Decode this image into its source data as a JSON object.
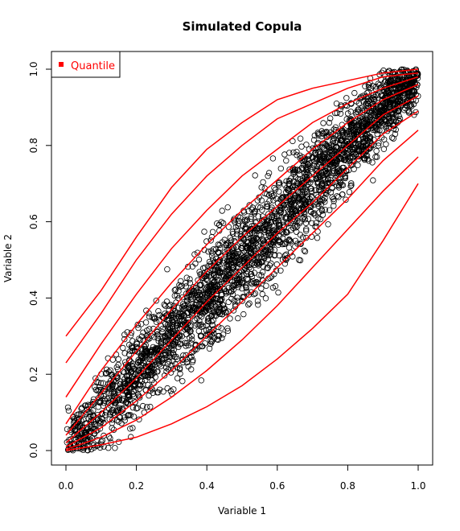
{
  "chart_data": {
    "type": "scatter",
    "title": "Simulated Copula",
    "xlabel": "Variable 1",
    "ylabel": "Variable 2",
    "xlim": [
      0,
      1
    ],
    "ylim": [
      0,
      1
    ],
    "x_ticks": [
      "0.0",
      "0.2",
      "0.4",
      "0.6",
      "0.8",
      "1.0"
    ],
    "y_ticks": [
      "0.0",
      "0.2",
      "0.4",
      "0.6",
      "0.8",
      "1.0"
    ],
    "legend": {
      "position": "top-left",
      "entries": [
        {
          "label": "Quantile",
          "color": "#ff0000"
        }
      ]
    },
    "points": {
      "count": 3000,
      "color": "#000000",
      "marker": "open-circle"
    },
    "quantile_color": "#ff0000",
    "quantile_x": [
      0,
      0.1,
      0.2,
      0.3,
      0.4,
      0.5,
      0.6,
      0.7,
      0.8,
      0.9,
      1.0
    ],
    "quantile_curves": [
      [
        0.0,
        0.015,
        0.035,
        0.07,
        0.115,
        0.17,
        0.24,
        0.32,
        0.41,
        0.55,
        0.7
      ],
      [
        0.003,
        0.035,
        0.08,
        0.14,
        0.21,
        0.29,
        0.38,
        0.48,
        0.58,
        0.68,
        0.77
      ],
      [
        0.01,
        0.06,
        0.13,
        0.21,
        0.3,
        0.39,
        0.48,
        0.57,
        0.66,
        0.76,
        0.84
      ],
      [
        0.02,
        0.1,
        0.19,
        0.29,
        0.39,
        0.48,
        0.57,
        0.65,
        0.74,
        0.83,
        0.89
      ],
      [
        0.04,
        0.15,
        0.26,
        0.37,
        0.47,
        0.56,
        0.64,
        0.72,
        0.8,
        0.88,
        0.93
      ],
      [
        0.07,
        0.21,
        0.33,
        0.44,
        0.54,
        0.63,
        0.71,
        0.79,
        0.86,
        0.92,
        0.96
      ],
      [
        0.14,
        0.28,
        0.41,
        0.53,
        0.63,
        0.72,
        0.79,
        0.86,
        0.91,
        0.95,
        0.98
      ],
      [
        0.23,
        0.36,
        0.5,
        0.62,
        0.72,
        0.8,
        0.87,
        0.91,
        0.95,
        0.98,
        0.99
      ],
      [
        0.3,
        0.42,
        0.56,
        0.69,
        0.79,
        0.86,
        0.92,
        0.95,
        0.97,
        0.99,
        1.0
      ]
    ]
  }
}
